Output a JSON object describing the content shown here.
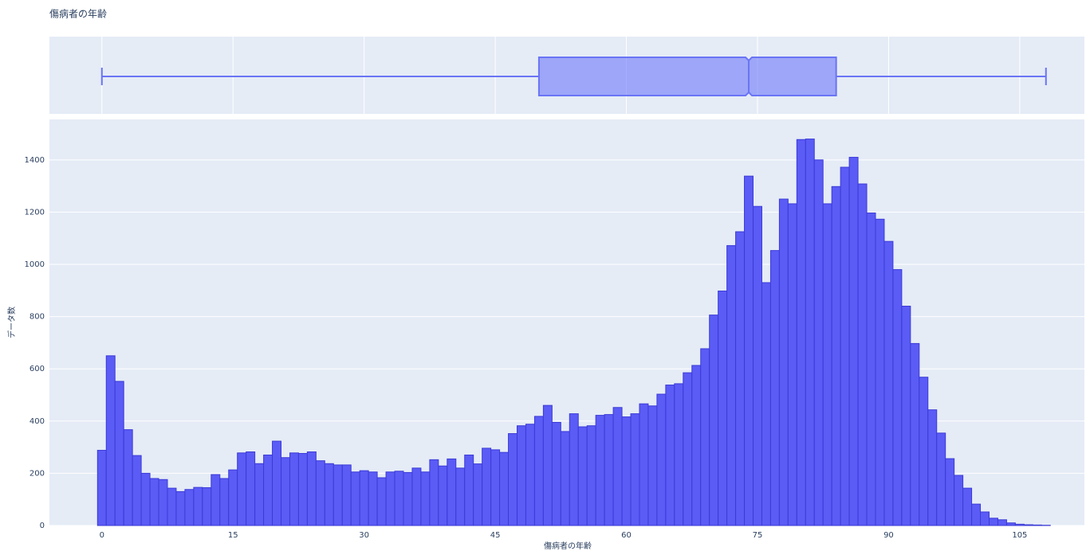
{
  "chart_data": {
    "type": "histogram",
    "title": "傷病者の年齢",
    "xlabel": "傷病者の年齢",
    "ylabel": "データ数",
    "bins": [
      -0.5,
      0.5,
      1.5,
      2.5,
      3.5,
      4.5,
      5.5,
      6.5,
      7.5,
      8.5,
      9.5,
      10.5,
      11.5,
      12.5,
      13.5,
      14.5,
      15.5,
      16.5,
      17.5,
      18.5,
      19.5,
      20.5,
      21.5,
      22.5,
      23.5,
      24.5,
      25.5,
      26.5,
      27.5,
      28.5,
      29.5,
      30.5,
      31.5,
      32.5,
      33.5,
      34.5,
      35.5,
      36.5,
      37.5,
      38.5,
      39.5,
      40.5,
      41.5,
      42.5,
      43.5,
      44.5,
      45.5,
      46.5,
      47.5,
      48.5,
      49.5,
      50.5,
      51.5,
      52.5,
      53.5,
      54.5,
      55.5,
      56.5,
      57.5,
      58.5,
      59.5,
      60.5,
      61.5,
      62.5,
      63.5,
      64.5,
      65.5,
      66.5,
      67.5,
      68.5,
      69.5,
      70.5,
      71.5,
      72.5,
      73.5,
      74.5,
      75.5,
      76.5,
      77.5,
      78.5,
      79.5,
      80.5,
      81.5,
      82.5,
      83.5,
      84.5,
      85.5,
      86.5,
      87.5,
      88.5,
      89.5,
      90.5,
      91.5,
      92.5,
      93.5,
      94.5,
      95.5,
      96.5,
      97.5,
      98.5,
      99.5,
      100.5,
      101.5,
      102.5,
      103.5,
      104.5,
      105.5,
      106.5,
      107.5,
      108.5
    ],
    "values": [
      288,
      650,
      552,
      367,
      268,
      200,
      180,
      176,
      143,
      130,
      138,
      146,
      145,
      195,
      180,
      213,
      278,
      282,
      237,
      270,
      323,
      260,
      278,
      276,
      282,
      248,
      237,
      232,
      232,
      205,
      210,
      205,
      183,
      205,
      208,
      203,
      220,
      205,
      252,
      228,
      255,
      220,
      270,
      236,
      296,
      290,
      280,
      352,
      382,
      388,
      418,
      460,
      395,
      360,
      428,
      378,
      382,
      422,
      425,
      452,
      416,
      428,
      466,
      458,
      503,
      538,
      543,
      585,
      613,
      677,
      806,
      898,
      1072,
      1125,
      1338,
      1222,
      930,
      1053,
      1250,
      1232,
      1478,
      1480,
      1400,
      1232,
      1298,
      1372,
      1410,
      1308,
      1197,
      1173,
      1088,
      980,
      840,
      697,
      568,
      443,
      354,
      256,
      192,
      143,
      82,
      52,
      28,
      22,
      10,
      5,
      3,
      2,
      1
    ],
    "color": "#5b5bf6",
    "xlim": [
      -6,
      112.4
    ],
    "ylim": [
      0,
      1555
    ],
    "xticks": [
      0,
      15,
      30,
      45,
      60,
      75,
      90,
      105
    ],
    "yticks": [
      0,
      200,
      400,
      600,
      800,
      1000,
      1200,
      1400
    ],
    "grid": true,
    "box": {
      "type": "box",
      "min": 0,
      "q1": 50,
      "median": 74,
      "q3": 84,
      "max": 108,
      "color": "#6a74f5",
      "notched": true
    }
  }
}
